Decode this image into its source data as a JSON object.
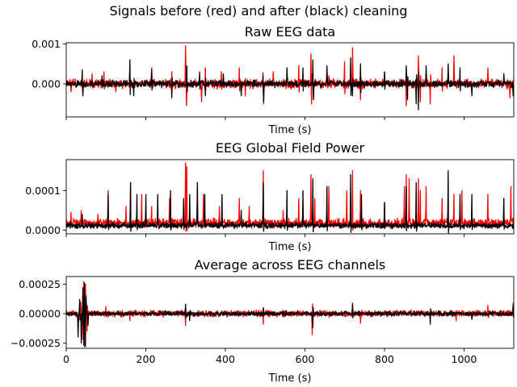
{
  "figure": {
    "suptitle": "Signals before (red) and after (black) cleaning"
  },
  "colors": {
    "before": "#ff0000",
    "after": "#000000"
  },
  "chart_data": [
    {
      "type": "line",
      "title": "Raw EEG data",
      "xlabel": "Time (s)",
      "ylabel": "",
      "xlim": [
        0,
        1125
      ],
      "ylim": [
        -0.00083,
        0.00103
      ],
      "yticks": [
        0,
        0.001
      ],
      "ytick_labels": [
        "0.000",
        "0.001"
      ],
      "xtick_labels_shown": false,
      "series": [
        {
          "color_key": "before",
          "baseline": 0,
          "noise": 9e-05,
          "points": [
            [
              12,
              -0.0002
            ],
            [
              65,
              0.00025
            ],
            [
              95,
              0.0003
            ],
            [
              125,
              -0.0002
            ],
            [
              160,
              0.00045
            ],
            [
              215,
              0.0004
            ],
            [
              265,
              0.0003
            ],
            [
              300,
              0.00095
            ],
            [
              302,
              -0.00055
            ],
            [
              340,
              -0.00045
            ],
            [
              350,
              0.0004
            ],
            [
              390,
              0.0003
            ],
            [
              435,
              0.0004
            ],
            [
              450,
              -0.0003
            ],
            [
              495,
              0.0008
            ],
            [
              496,
              -0.0005
            ],
            [
              520,
              0.0003
            ],
            [
              585,
              0.00045
            ],
            [
              615,
              0.00075
            ],
            [
              617,
              -0.0005
            ],
            [
              660,
              0.0002
            ],
            [
              700,
              0.00055
            ],
            [
              720,
              0.0009
            ],
            [
              740,
              -0.0004
            ],
            [
              800,
              0.0003
            ],
            [
              855,
              0.0005
            ],
            [
              855,
              -0.00055
            ],
            [
              885,
              0.0007
            ],
            [
              890,
              -0.00045
            ],
            [
              915,
              -0.0005
            ],
            [
              945,
              0.0004
            ],
            [
              975,
              0.0007
            ],
            [
              1060,
              0.0004
            ],
            [
              1115,
              -0.00035
            ]
          ]
        },
        {
          "color_key": "after",
          "baseline": 0,
          "noise": 7e-05,
          "points": [
            [
              40,
              0.00035
            ],
            [
              42,
              -0.0003
            ],
            [
              90,
              0.0002
            ],
            [
              160,
              0.0006
            ],
            [
              170,
              -0.0003
            ],
            [
              215,
              0.00035
            ],
            [
              265,
              -0.00035
            ],
            [
              303,
              0.00045
            ],
            [
              335,
              0.0003
            ],
            [
              350,
              -0.0003
            ],
            [
              395,
              0.00025
            ],
            [
              440,
              -0.0003
            ],
            [
              495,
              0.0006
            ],
            [
              496,
              -0.00045
            ],
            [
              555,
              0.0004
            ],
            [
              595,
              0.0004
            ],
            [
              620,
              0.0006
            ],
            [
              622,
              -0.0004
            ],
            [
              655,
              0.00045
            ],
            [
              715,
              0.00065
            ],
            [
              720,
              -0.0003
            ],
            [
              740,
              0.0005
            ],
            [
              800,
              0.0003
            ],
            [
              855,
              0.00045
            ],
            [
              858,
              -0.0004
            ],
            [
              880,
              -0.0005
            ],
            [
              885,
              -0.00065
            ],
            [
              905,
              0.00045
            ],
            [
              960,
              0.0005
            ],
            [
              990,
              0.0004
            ],
            [
              1020,
              -0.0003
            ],
            [
              1100,
              0.00025
            ],
            [
              1123,
              -0.0003
            ]
          ]
        }
      ]
    },
    {
      "type": "line",
      "title": "EEG Global Field Power",
      "xlabel": "Time (s)",
      "ylabel": "",
      "xlim": [
        0,
        1125
      ],
      "ylim": [
        -9e-06,
        0.000178
      ],
      "yticks": [
        0,
        0.0001
      ],
      "ytick_labels": [
        "0.0000",
        "0.0001"
      ],
      "xtick_labels_shown": false,
      "series": [
        {
          "color_key": "before",
          "baseline": 1.8e-05,
          "noise": 9e-06,
          "points": [
            [
              12,
              4.5e-05
            ],
            [
              38,
              5e-05
            ],
            [
              80,
              4e-05
            ],
            [
              105,
              0.0001
            ],
            [
              150,
              6e-05
            ],
            [
              162,
              0.00012
            ],
            [
              190,
              9e-05
            ],
            [
              215,
              6e-05
            ],
            [
              260,
              8e-05
            ],
            [
              300,
              0.00017
            ],
            [
              303,
              0.00016
            ],
            [
              330,
              0.00012
            ],
            [
              345,
              9e-05
            ],
            [
              385,
              6e-05
            ],
            [
              435,
              8e-05
            ],
            [
              460,
              6e-05
            ],
            [
              495,
              0.00015
            ],
            [
              545,
              5e-05
            ],
            [
              585,
              8e-05
            ],
            [
              615,
              0.00014
            ],
            [
              625,
              8e-05
            ],
            [
              660,
              0.00011
            ],
            [
              705,
              0.0001
            ],
            [
              720,
              0.00015
            ],
            [
              740,
              0.0001
            ],
            [
              800,
              7e-05
            ],
            [
              850,
              0.00011
            ],
            [
              855,
              0.00014
            ],
            [
              862,
              0.00013
            ],
            [
              885,
              0.00013
            ],
            [
              890,
              0.0001
            ],
            [
              905,
              0.00011
            ],
            [
              945,
              8e-05
            ],
            [
              975,
              9e-05
            ],
            [
              995,
              0.0001
            ],
            [
              1060,
              9e-05
            ],
            [
              1100,
              8e-05
            ],
            [
              1118,
              0.00011
            ]
          ]
        },
        {
          "color_key": "after",
          "baseline": 1.2e-05,
          "noise": 6e-06,
          "points": [
            [
              40,
              4e-05
            ],
            [
              105,
              9e-05
            ],
            [
              162,
              0.00012
            ],
            [
              178,
              9e-05
            ],
            [
              200,
              9e-05
            ],
            [
              230,
              9e-05
            ],
            [
              262,
              0.0001
            ],
            [
              295,
              8e-05
            ],
            [
              310,
              9e-05
            ],
            [
              330,
              0.00012
            ],
            [
              348,
              9e-05
            ],
            [
              392,
              9e-05
            ],
            [
              440,
              5e-05
            ],
            [
              495,
              0.00012
            ],
            [
              555,
              0.0001
            ],
            [
              595,
              0.0001
            ],
            [
              620,
              0.00013
            ],
            [
              655,
              0.00011
            ],
            [
              715,
              0.00014
            ],
            [
              742,
              9e-05
            ],
            [
              800,
              7e-05
            ],
            [
              855,
              0.00011
            ],
            [
              880,
              0.00012
            ],
            [
              960,
              0.00015
            ],
            [
              990,
              9e-05
            ],
            [
              1020,
              9e-05
            ],
            [
              1100,
              8e-05
            ]
          ]
        }
      ]
    },
    {
      "type": "line",
      "title": "Average across EEG channels",
      "xlabel": "Time (s)",
      "ylabel": "",
      "xlim": [
        0,
        1125
      ],
      "ylim": [
        -0.000295,
        0.000315
      ],
      "yticks": [
        -0.00025,
        0,
        0.00025
      ],
      "ytick_labels": [
        "−0.00025",
        "0.00000",
        "0.00025"
      ],
      "xticks": [
        0,
        200,
        400,
        600,
        800,
        1000
      ],
      "xtick_labels": [
        "0",
        "200",
        "400",
        "600",
        "800",
        "1000"
      ],
      "xtick_labels_shown": true,
      "series": [
        {
          "color_key": "before",
          "baseline": 0,
          "noise": 2.2e-05,
          "points": [
            [
              30,
              -0.00012
            ],
            [
              36,
              0.0001
            ],
            [
              40,
              -0.00022
            ],
            [
              44,
              0.00027
            ],
            [
              46,
              -0.00028
            ],
            [
              48,
              0.00025
            ],
            [
              52,
              -0.00015
            ],
            [
              100,
              6e-05
            ],
            [
              160,
              -6e-05
            ],
            [
              300,
              8e-05
            ],
            [
              300,
              -0.0001
            ],
            [
              495,
              -9e-05
            ],
            [
              618,
              -0.00018
            ],
            [
              720,
              9e-05
            ],
            [
              740,
              -8e-05
            ],
            [
              980,
              -6e-05
            ],
            [
              1060,
              7e-05
            ],
            [
              1123,
              9e-05
            ]
          ]
        },
        {
          "color_key": "after",
          "baseline": 0,
          "noise": 1.6e-05,
          "points": [
            [
              30,
              -0.0002
            ],
            [
              34,
              0.00012
            ],
            [
              38,
              -0.00025
            ],
            [
              42,
              0.00022
            ],
            [
              44,
              -0.00027
            ],
            [
              46,
              0.00026
            ],
            [
              48,
              -0.00028
            ],
            [
              50,
              0.00015
            ],
            [
              55,
              -0.0001
            ],
            [
              300,
              8e-05
            ],
            [
              310,
              -6e-05
            ],
            [
              495,
              5e-05
            ],
            [
              620,
              -0.00012
            ],
            [
              720,
              8e-05
            ],
            [
              915,
              -9e-05
            ],
            [
              1020,
              -5e-05
            ],
            [
              1123,
              7e-05
            ]
          ]
        }
      ]
    }
  ]
}
